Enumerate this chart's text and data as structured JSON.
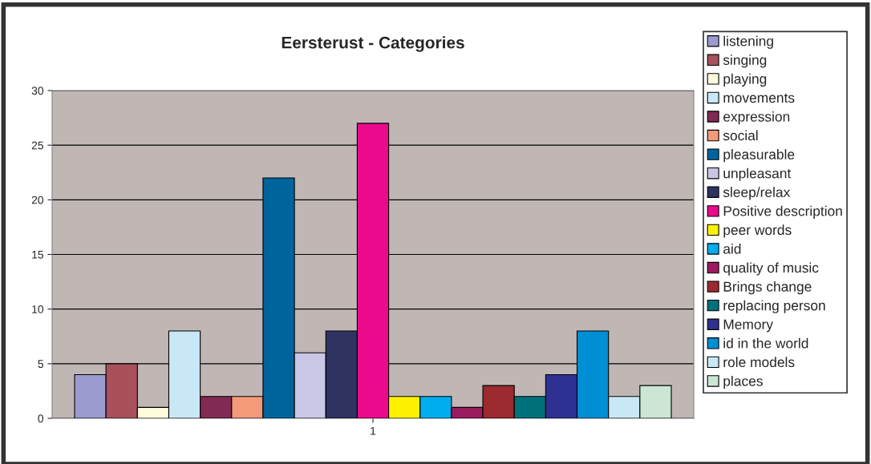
{
  "chart_data": {
    "type": "bar",
    "title": "Eersterust - Categories",
    "categories": [
      "1"
    ],
    "series": [
      {
        "name": "listening",
        "color": "#9b9bd0",
        "values": [
          4
        ]
      },
      {
        "name": "singing",
        "color": "#a8515d",
        "values": [
          5
        ]
      },
      {
        "name": "playing",
        "color": "#fffbdd",
        "values": [
          1
        ]
      },
      {
        "name": "movements",
        "color": "#c9e8f6",
        "values": [
          8
        ]
      },
      {
        "name": "expression",
        "color": "#812a52",
        "values": [
          2
        ]
      },
      {
        "name": "social",
        "color": "#f49a7b",
        "values": [
          2
        ]
      },
      {
        "name": "pleasurable",
        "color": "#00649c",
        "values": [
          22
        ]
      },
      {
        "name": "unpleasant",
        "color": "#c9c6e6",
        "values": [
          6
        ]
      },
      {
        "name": "sleep/relax",
        "color": "#2e3361",
        "values": [
          8
        ]
      },
      {
        "name": "Positive description",
        "color": "#eb0a8c",
        "values": [
          27
        ]
      },
      {
        "name": "peer words",
        "color": "#fff200",
        "values": [
          2
        ]
      },
      {
        "name": "aid",
        "color": "#00adef",
        "values": [
          2
        ]
      },
      {
        "name": "quality of music",
        "color": "#9b1b60",
        "values": [
          1
        ]
      },
      {
        "name": "Brings change",
        "color": "#9c2a2e",
        "values": [
          3
        ]
      },
      {
        "name": "replacing person",
        "color": "#00717a",
        "values": [
          2
        ]
      },
      {
        "name": "Memory",
        "color": "#2e3192",
        "values": [
          4
        ]
      },
      {
        "name": "id in the world",
        "color": "#008fd5",
        "values": [
          8
        ]
      },
      {
        "name": "role models",
        "color": "#c9e8f6",
        "values": [
          2
        ]
      },
      {
        "name": "places",
        "color": "#cbe6d4",
        "values": [
          3
        ]
      }
    ],
    "ylim": [
      0,
      30
    ],
    "yticks": [
      0,
      5,
      10,
      15,
      20,
      25,
      30
    ],
    "grid": "y",
    "legend": "right"
  }
}
